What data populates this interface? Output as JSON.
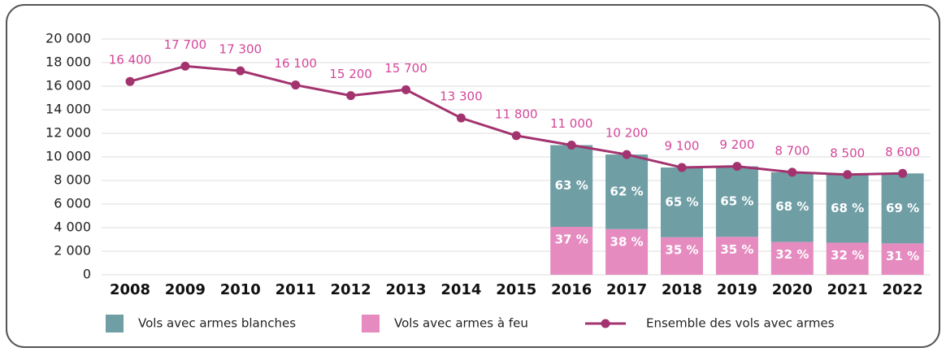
{
  "chart_data": {
    "type": "bar-line",
    "categories": [
      "2008",
      "2009",
      "2010",
      "2011",
      "2012",
      "2013",
      "2014",
      "2015",
      "2016",
      "2017",
      "2018",
      "2019",
      "2020",
      "2021",
      "2022"
    ],
    "series": [
      {
        "name": "Vols avec armes blanches",
        "type": "stacked-share",
        "color": "#6f9ea5",
        "values": [
          null,
          null,
          null,
          null,
          null,
          null,
          null,
          null,
          63,
          62,
          65,
          65,
          68,
          68,
          69
        ],
        "value_labels": [
          null,
          null,
          null,
          null,
          null,
          null,
          null,
          null,
          "63 %",
          "62 %",
          "65 %",
          "65 %",
          "68 %",
          "68 %",
          "69 %"
        ]
      },
      {
        "name": "Vols avec armes à feu",
        "type": "stacked-share",
        "color": "#e68bbf",
        "values": [
          null,
          null,
          null,
          null,
          null,
          null,
          null,
          null,
          37,
          38,
          35,
          35,
          32,
          32,
          31
        ],
        "value_labels": [
          null,
          null,
          null,
          null,
          null,
          null,
          null,
          null,
          "37 %",
          "38 %",
          "35 %",
          "35 %",
          "32 %",
          "32 %",
          "31 %"
        ]
      },
      {
        "name": "Ensemble des vols avec armes",
        "type": "line",
        "color": "#a3336f",
        "values": [
          16400,
          17700,
          17300,
          16100,
          15200,
          15700,
          13300,
          11800,
          11000,
          10200,
          9100,
          9200,
          8700,
          8500,
          8600
        ],
        "value_labels": [
          "16 400",
          "17 700",
          "17 300",
          "16 100",
          "15 200",
          "15 700",
          "13 300",
          "11 800",
          "11 000",
          "10 200",
          "9 100",
          "9 200",
          "8 700",
          "8 500",
          "8 600"
        ]
      }
    ],
    "ylim": [
      0,
      20000
    ],
    "yticks": [
      0,
      {
        "value": 2000,
        "label": "2 000"
      },
      {
        "value": 4000,
        "label": "4 000"
      },
      {
        "value": 6000,
        "label": "6 000"
      },
      {
        "value": 8000,
        "label": "8 000"
      },
      {
        "value": 10000,
        "label": "10 000"
      },
      {
        "value": 12000,
        "label": "12 000"
      },
      {
        "value": 14000,
        "label": "14 000"
      },
      {
        "value": 16000,
        "label": "16 000"
      },
      {
        "value": 18000,
        "label": "18 000"
      },
      {
        "value": 20000,
        "label": "20 000"
      }
    ],
    "grid": true
  }
}
